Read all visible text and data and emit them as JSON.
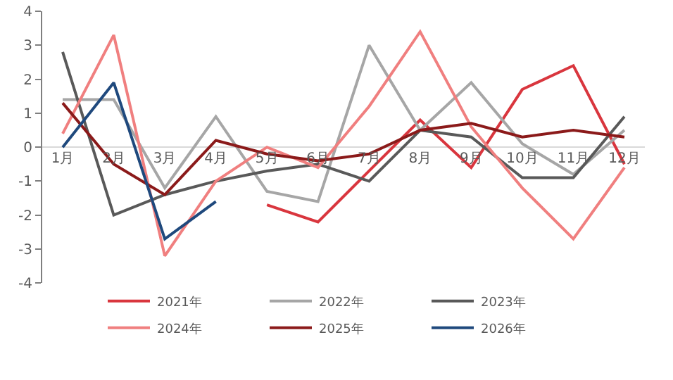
{
  "chart_data": {
    "type": "line",
    "categories": [
      "1月",
      "2月",
      "3月",
      "4月",
      "5月",
      "6月",
      "7月",
      "8月",
      "9月",
      "10月",
      "11月",
      "12月"
    ],
    "series": [
      {
        "name": "2021年",
        "color": "#d9363e",
        "values": [
          null,
          null,
          null,
          null,
          -1.7,
          -2.2,
          -0.7,
          0.8,
          -0.6,
          1.7,
          2.4,
          -0.5
        ]
      },
      {
        "name": "2022年",
        "color": "#a6a6a6",
        "values": [
          1.4,
          1.4,
          -1.2,
          0.9,
          -1.3,
          -1.6,
          3.0,
          0.5,
          1.9,
          0.1,
          -0.8,
          0.5
        ]
      },
      {
        "name": "2023年",
        "color": "#595959",
        "values": [
          2.8,
          -2.0,
          -1.4,
          -1.0,
          -0.7,
          -0.5,
          -1.0,
          0.5,
          0.3,
          -0.9,
          -0.9,
          0.9
        ]
      },
      {
        "name": "2024年",
        "color": "#f07f7f",
        "values": [
          0.4,
          3.3,
          -3.2,
          -1.0,
          0.0,
          -0.6,
          1.2,
          3.4,
          0.6,
          -1.2,
          -2.7,
          -0.6
        ]
      },
      {
        "name": "2025年",
        "color": "#8b1a1a",
        "values": [
          1.3,
          -0.5,
          -1.4,
          0.2,
          -0.2,
          -0.4,
          -0.2,
          0.5,
          0.7,
          0.3,
          0.5,
          0.3
        ]
      },
      {
        "name": "2026年",
        "color": "#1f497d",
        "values": [
          0.0,
          1.9,
          -2.7,
          -1.6,
          null,
          null,
          null,
          null,
          null,
          null,
          null,
          null
        ]
      }
    ],
    "ylim": [
      -4,
      4
    ],
    "yticks": [
      -4,
      -3,
      -2,
      -1,
      0,
      1,
      2,
      3,
      4
    ],
    "grid": false,
    "legend": "bottom",
    "marker": "none",
    "line_style": "solid"
  }
}
